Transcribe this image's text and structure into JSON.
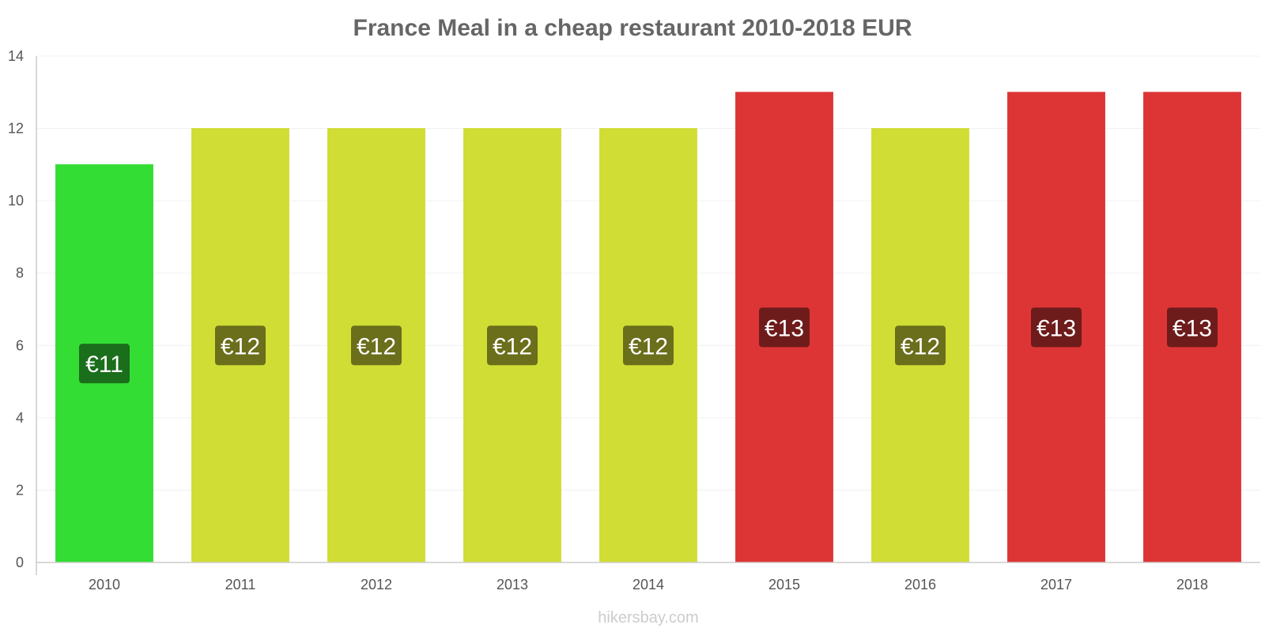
{
  "chart_data": {
    "type": "bar",
    "title": "France Meal in a cheap restaurant 2010-2018 EUR",
    "categories": [
      "2010",
      "2011",
      "2012",
      "2013",
      "2014",
      "2015",
      "2016",
      "2017",
      "2018"
    ],
    "values": [
      11,
      12,
      12,
      12,
      12,
      13,
      12,
      13,
      13
    ],
    "data_labels": [
      "€11",
      "€12",
      "€12",
      "€12",
      "€12",
      "€13",
      "€12",
      "€13",
      "€13"
    ],
    "ylim": [
      0,
      14
    ],
    "yticks": [
      0,
      2,
      4,
      6,
      8,
      10,
      12,
      14
    ],
    "grid": true,
    "legend": "none",
    "colors": {
      "low": "#33dd33",
      "low_label": "#1b6e1b",
      "mid": "#d0dd35",
      "mid_label": "#6b6e1b",
      "high": "#dd3535",
      "high_label": "#6e1b1b"
    },
    "bar_color_keys": [
      "low",
      "mid",
      "mid",
      "mid",
      "mid",
      "high",
      "mid",
      "high",
      "high"
    ]
  },
  "source": "hikersbay.com"
}
